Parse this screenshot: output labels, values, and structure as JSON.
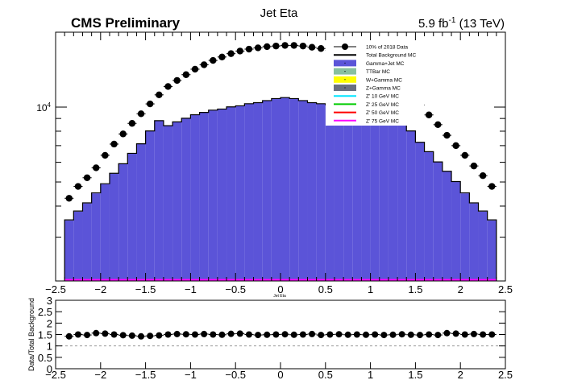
{
  "header": {
    "title": "Jet Eta",
    "experiment": "CMS Preliminary",
    "lumi_value": "5.9 fb",
    "lumi_exp": "-1",
    "lumi_energy": " (13 TeV)"
  },
  "main_axes": {
    "xlabel": "Jet Eta",
    "ytick_label": "10",
    "ytick_exp": "4",
    "xticks": [
      -2.5,
      -2,
      -1.5,
      -1,
      -0.5,
      0,
      0.5,
      1,
      1.5,
      2,
      2.5
    ],
    "xtick_labels": [
      "−2.5",
      "−2",
      "−1.5",
      "−1",
      "−0.5",
      "0",
      "0.5",
      "1",
      "1.5",
      "2",
      "2.5"
    ]
  },
  "ratio_axes": {
    "ylabel": "Data/Total Background",
    "yticks": [
      0,
      0.5,
      1,
      1.5,
      2,
      2.5,
      3
    ],
    "ytick_labels": [
      "0",
      "0.5",
      "1",
      "1.5",
      "2",
      "2.5",
      "3"
    ],
    "xtick_labels": [
      "−2.5",
      "−2",
      "−1.5",
      "−1",
      "−0.5",
      "0",
      "0.5",
      "1",
      "1.5",
      "2",
      "2.5"
    ]
  },
  "legend": {
    "entries": [
      {
        "label": "10% of 2018 Data",
        "kind": "marker",
        "color": "#000000"
      },
      {
        "label": "Total Background MC",
        "kind": "line",
        "color": "#000000"
      },
      {
        "label": "Gamma+Jet MC",
        "kind": "box",
        "color": "#5b54d8"
      },
      {
        "label": "TTBar MC",
        "kind": "box",
        "color": "#88c0a0"
      },
      {
        "label": "W+Gamma MC",
        "kind": "box",
        "color": "#ffff00"
      },
      {
        "label": "Z+Gamma MC",
        "kind": "box",
        "color": "#6a7080"
      },
      {
        "label": "Z' 10 GeV MC",
        "kind": "line",
        "color": "#00e5ff"
      },
      {
        "label": "Z' 25 GeV MC",
        "kind": "line",
        "color": "#00cc00"
      },
      {
        "label": "Z' 50 GeV MC",
        "kind": "line",
        "color": "#ff0000"
      },
      {
        "label": "Z' 75 GeV MC",
        "kind": "line",
        "color": "#ff00ff"
      }
    ]
  },
  "chart_data": [
    {
      "type": "bar",
      "title": "Jet Eta",
      "xlabel": "Jet Eta",
      "ylabel": "",
      "xlim": [
        -2.5,
        2.5
      ],
      "ylim": [
        2000,
        20000
      ],
      "log_y": true,
      "bin_width": 0.1,
      "bin_centers": [
        -2.35,
        -2.25,
        -2.15,
        -2.05,
        -1.95,
        -1.85,
        -1.75,
        -1.65,
        -1.55,
        -1.45,
        -1.35,
        -1.25,
        -1.15,
        -1.05,
        -0.95,
        -0.85,
        -0.75,
        -0.65,
        -0.55,
        -0.45,
        -0.35,
        -0.25,
        -0.15,
        -0.05,
        0.05,
        0.15,
        0.25,
        0.35,
        0.45,
        0.55,
        0.65,
        0.75,
        0.85,
        0.95,
        1.05,
        1.15,
        1.25,
        1.35,
        1.45,
        1.55,
        1.65,
        1.75,
        1.85,
        1.95,
        2.05,
        2.15,
        2.25,
        2.35
      ],
      "series": [
        {
          "name": "Gamma+Jet MC",
          "color": "#5b54d8",
          "values": [
            3500,
            3800,
            4100,
            4500,
            4900,
            5400,
            5900,
            6500,
            7100,
            8000,
            8800,
            8400,
            8700,
            9000,
            9300,
            9500,
            9700,
            9800,
            10000,
            10100,
            10300,
            10400,
            10600,
            10800,
            10900,
            10800,
            10600,
            10400,
            10300,
            10200,
            10000,
            9800,
            9700,
            9500,
            9300,
            9000,
            8800,
            8500,
            8000,
            7200,
            6600,
            6000,
            5500,
            5000,
            4500,
            4100,
            3800,
            3500
          ]
        },
        {
          "name": "Total Background MC",
          "color": "#000000",
          "values": [
            3520,
            3820,
            4120,
            4520,
            4920,
            5420,
            5920,
            6520,
            7120,
            8020,
            8820,
            8420,
            8720,
            9020,
            9320,
            9520,
            9720,
            9820,
            10020,
            10120,
            10320,
            10420,
            10620,
            10820,
            10920,
            10820,
            10620,
            10420,
            10320,
            10220,
            10020,
            9820,
            9720,
            9520,
            9320,
            9020,
            8820,
            8520,
            8020,
            7220,
            6620,
            6020,
            5520,
            5020,
            4520,
            4120,
            3820,
            3520
          ]
        },
        {
          "name": "10% of 2018 Data",
          "color": "#000000",
          "values": [
            4300,
            4800,
            5200,
            5700,
            6400,
            7100,
            7800,
            8600,
            9400,
            10300,
            11200,
            12100,
            12800,
            13500,
            14200,
            14800,
            15400,
            15900,
            16400,
            16800,
            17100,
            17300,
            17500,
            17600,
            17700,
            17700,
            17600,
            17400,
            17200,
            16900,
            16500,
            16100,
            15600,
            15000,
            14300,
            13600,
            12900,
            12000,
            11100,
            10200,
            9300,
            8500,
            7700,
            7000,
            6400,
            5800,
            5300,
            4800
          ]
        },
        {
          "name": "Z' 75 GeV MC",
          "color": "#ff00ff",
          "values": [
            0,
            0,
            0,
            0,
            0,
            0,
            0,
            0,
            0,
            0,
            0,
            0,
            0,
            0,
            0,
            0,
            0,
            0,
            0,
            0,
            0,
            0,
            0,
            0,
            0,
            0,
            0,
            0,
            0,
            0,
            0,
            0,
            0,
            0,
            0,
            0,
            0,
            0,
            0,
            0,
            0,
            0,
            0,
            0,
            0,
            0,
            0,
            0
          ]
        }
      ]
    },
    {
      "type": "scatter",
      "title": "",
      "xlabel": "",
      "ylabel": "Data/Total Background",
      "xlim": [
        -2.5,
        2.5
      ],
      "ylim": [
        0,
        3
      ],
      "reference_line": 1,
      "x": [
        -2.35,
        -2.25,
        -2.15,
        -2.05,
        -1.95,
        -1.85,
        -1.75,
        -1.65,
        -1.55,
        -1.45,
        -1.35,
        -1.25,
        -1.15,
        -1.05,
        -0.95,
        -0.85,
        -0.75,
        -0.65,
        -0.55,
        -0.45,
        -0.35,
        -0.25,
        -0.15,
        -0.05,
        0.05,
        0.15,
        0.25,
        0.35,
        0.45,
        0.55,
        0.65,
        0.75,
        0.85,
        0.95,
        1.05,
        1.15,
        1.25,
        1.35,
        1.45,
        1.55,
        1.65,
        1.75,
        1.85,
        1.95,
        2.05,
        2.15,
        2.25,
        2.35
      ],
      "y": [
        1.42,
        1.5,
        1.48,
        1.56,
        1.54,
        1.5,
        1.47,
        1.45,
        1.42,
        1.44,
        1.46,
        1.5,
        1.52,
        1.51,
        1.5,
        1.52,
        1.5,
        1.49,
        1.53,
        1.54,
        1.5,
        1.48,
        1.49,
        1.5,
        1.51,
        1.49,
        1.5,
        1.52,
        1.48,
        1.5,
        1.51,
        1.49,
        1.5,
        1.49,
        1.5,
        1.48,
        1.49,
        1.51,
        1.49,
        1.48,
        1.5,
        1.48,
        1.56,
        1.54,
        1.5,
        1.52,
        1.5,
        1.5
      ]
    }
  ]
}
